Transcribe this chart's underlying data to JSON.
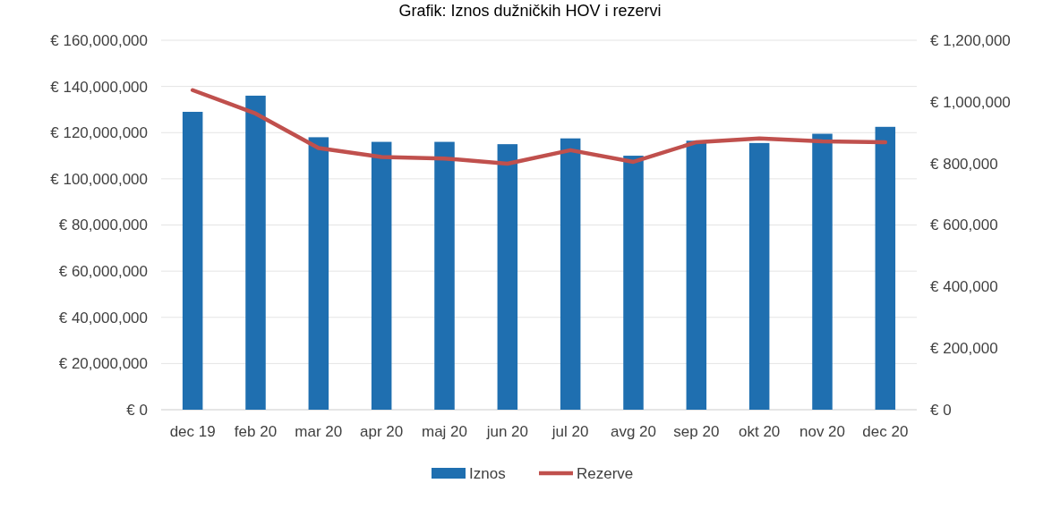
{
  "chart_data": {
    "type": "bar",
    "title": "Grafik: Iznos dužničkih HOV i rezervi",
    "categories": [
      "dec 19",
      "feb 20",
      "mar 20",
      "apr 20",
      "maj 20",
      "jun 20",
      "jul 20",
      "avg 20",
      "sep 20",
      "okt 20",
      "nov 20",
      "dec 20"
    ],
    "series": [
      {
        "name": "Iznos",
        "color": "#1f6fb0",
        "values": [
          129000000,
          136000000,
          118000000,
          116000000,
          116000000,
          115000000,
          117500000,
          110000000,
          116500000,
          115500000,
          119500000,
          122500000
        ]
      },
      {
        "name": "Rezerve",
        "type": "line",
        "axis": "y2",
        "color": "#c0504d",
        "values": [
          1038000,
          962000,
          850000,
          821000,
          816000,
          799000,
          843000,
          805000,
          869000,
          881000,
          872000,
          869000
        ]
      }
    ],
    "ylim": [
      0,
      160000000
    ],
    "yticks": [
      {
        "value": 0,
        "label": "€ 0"
      },
      {
        "value": 20000000,
        "label": "€ 20,000,000"
      },
      {
        "value": 40000000,
        "label": "€ 40,000,000"
      },
      {
        "value": 60000000,
        "label": "€ 60,000,000"
      },
      {
        "value": 80000000,
        "label": "€ 80,000,000"
      },
      {
        "value": 100000000,
        "label": "€ 100,000,000"
      },
      {
        "value": 120000000,
        "label": "€ 120,000,000"
      },
      {
        "value": 140000000,
        "label": "€ 140,000,000"
      },
      {
        "value": 160000000,
        "label": "€ 160,000,000"
      }
    ],
    "y2lim": [
      0,
      1200000
    ],
    "y2ticks": [
      {
        "value": 0,
        "label": "€ 0"
      },
      {
        "value": 200000,
        "label": "€ 200,000"
      },
      {
        "value": 400000,
        "label": "€ 400,000"
      },
      {
        "value": 600000,
        "label": "€ 600,000"
      },
      {
        "value": 800000,
        "label": "€ 800,000"
      },
      {
        "value": 1000000,
        "label": "€ 1,000,000"
      },
      {
        "value": 1200000,
        "label": "€ 1,200,000"
      }
    ],
    "grid": "y",
    "legend": "bottom",
    "marker": "none",
    "line_style": "solid"
  }
}
